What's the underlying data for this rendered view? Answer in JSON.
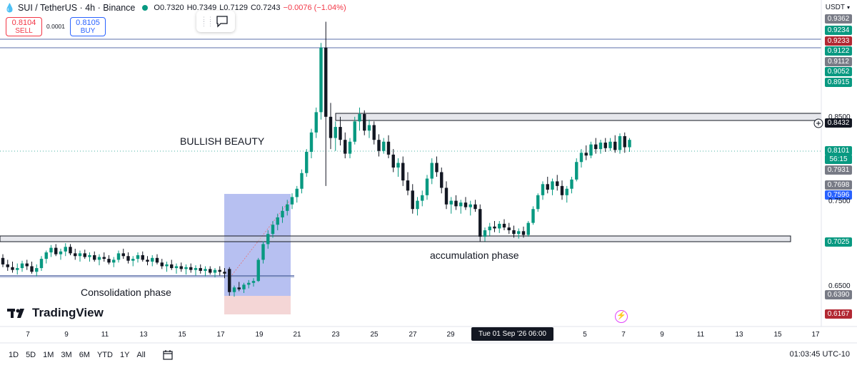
{
  "header": {
    "symbol": "SUI / TetherUS · 4h · Binance",
    "open": "O0.7320",
    "high": "H0.7349",
    "low": "L0.7129",
    "close": "C0.7243",
    "change": "−0.0076 (−1.04%)"
  },
  "trade": {
    "sell_price": "0.8104",
    "sell_label": "SELL",
    "spread": "0.0001",
    "buy_price": "0.8105",
    "buy_label": "BUY"
  },
  "currency": "USDT",
  "price_labels": [
    {
      "text": "0.9362",
      "color": "#787b86"
    },
    {
      "text": "0.9234",
      "color": "#089981"
    },
    {
      "text": "0.9233",
      "color": "#b22833"
    },
    {
      "text": "0.9122",
      "color": "#089981"
    },
    {
      "text": "0.9112",
      "color": "#787b86"
    },
    {
      "text": "0.9052",
      "color": "#089981"
    },
    {
      "text": "0.8915",
      "color": "#089981"
    },
    {
      "text": "0.8432",
      "color": "#131722"
    },
    {
      "text": "0.8101",
      "color": "#089981"
    },
    {
      "text": "56:15",
      "color": "#089981"
    },
    {
      "text": "0.7931",
      "color": "#787b86"
    },
    {
      "text": "0.7698",
      "color": "#787b86"
    },
    {
      "text": "0.7596",
      "color": "#2962ff"
    },
    {
      "text": "0.7025",
      "color": "#089981"
    },
    {
      "text": "0.6390",
      "color": "#787b86"
    },
    {
      "text": "0.6167",
      "color": "#b22833"
    }
  ],
  "axis_prices": [
    "0.8500",
    "0.7500",
    "0.6500"
  ],
  "x_ticks": [
    "7",
    "9",
    "11",
    "13",
    "15",
    "17",
    "19",
    "21",
    "23",
    "25",
    "27",
    "29",
    "5",
    "7",
    "9",
    "11",
    "13",
    "15",
    "17"
  ],
  "crosshair_date": "Tue 01 Sep '26   06:00",
  "annotations": {
    "bullish": "BULLISH BEAUTY",
    "accumulation": "accumulation phase",
    "consolidation": "Consolidation phase"
  },
  "logo_text": "TradingView",
  "timeframes": [
    "1D",
    "5D",
    "1M",
    "3M",
    "6M",
    "YTD",
    "1Y",
    "All"
  ],
  "clock": "01:03:45 UTC-10",
  "colors": {
    "up": "#089981",
    "down": "#131722"
  },
  "chart_data": {
    "type": "candlestick",
    "interval": "4h",
    "ylim": [
      0.61,
      0.95
    ],
    "candles": [
      [
        0.682,
        0.686,
        0.672,
        0.675
      ],
      [
        0.675,
        0.68,
        0.668,
        0.672
      ],
      [
        0.672,
        0.678,
        0.666,
        0.669
      ],
      [
        0.669,
        0.676,
        0.664,
        0.671
      ],
      [
        0.671,
        0.679,
        0.667,
        0.676
      ],
      [
        0.676,
        0.68,
        0.669,
        0.673
      ],
      [
        0.673,
        0.678,
        0.665,
        0.667
      ],
      [
        0.667,
        0.675,
        0.662,
        0.671
      ],
      [
        0.671,
        0.684,
        0.668,
        0.681
      ],
      [
        0.681,
        0.69,
        0.676,
        0.688
      ],
      [
        0.688,
        0.696,
        0.683,
        0.693
      ],
      [
        0.693,
        0.697,
        0.684,
        0.686
      ],
      [
        0.686,
        0.692,
        0.68,
        0.689
      ],
      [
        0.689,
        0.698,
        0.684,
        0.694
      ],
      [
        0.694,
        0.697,
        0.685,
        0.687
      ],
      [
        0.687,
        0.692,
        0.68,
        0.684
      ],
      [
        0.684,
        0.69,
        0.678,
        0.687
      ],
      [
        0.687,
        0.691,
        0.681,
        0.683
      ],
      [
        0.683,
        0.688,
        0.678,
        0.685
      ],
      [
        0.685,
        0.689,
        0.678,
        0.68
      ],
      [
        0.68,
        0.686,
        0.674,
        0.683
      ],
      [
        0.683,
        0.688,
        0.678,
        0.681
      ],
      [
        0.681,
        0.685,
        0.675,
        0.677
      ],
      [
        0.677,
        0.683,
        0.672,
        0.68
      ],
      [
        0.68,
        0.69,
        0.677,
        0.687
      ],
      [
        0.687,
        0.692,
        0.681,
        0.684
      ],
      [
        0.684,
        0.688,
        0.676,
        0.679
      ],
      [
        0.679,
        0.684,
        0.673,
        0.681
      ],
      [
        0.681,
        0.688,
        0.677,
        0.685
      ],
      [
        0.685,
        0.689,
        0.678,
        0.68
      ],
      [
        0.68,
        0.684,
        0.674,
        0.678
      ],
      [
        0.678,
        0.685,
        0.673,
        0.682
      ],
      [
        0.682,
        0.686,
        0.675,
        0.677
      ],
      [
        0.677,
        0.681,
        0.67,
        0.673
      ],
      [
        0.673,
        0.678,
        0.667,
        0.675
      ],
      [
        0.675,
        0.68,
        0.669,
        0.671
      ],
      [
        0.671,
        0.676,
        0.665,
        0.673
      ],
      [
        0.673,
        0.677,
        0.667,
        0.67
      ],
      [
        0.67,
        0.675,
        0.664,
        0.672
      ],
      [
        0.672,
        0.676,
        0.666,
        0.669
      ],
      [
        0.669,
        0.674,
        0.663,
        0.671
      ],
      [
        0.671,
        0.675,
        0.665,
        0.668
      ],
      [
        0.668,
        0.673,
        0.662,
        0.67
      ],
      [
        0.67,
        0.673,
        0.664,
        0.666
      ],
      [
        0.666,
        0.671,
        0.661,
        0.669
      ],
      [
        0.669,
        0.673,
        0.663,
        0.667
      ],
      [
        0.667,
        0.671,
        0.66,
        0.665
      ],
      [
        0.67,
        0.672,
        0.641,
        0.645
      ],
      [
        0.645,
        0.652,
        0.64,
        0.65
      ],
      [
        0.65,
        0.656,
        0.646,
        0.648
      ],
      [
        0.648,
        0.655,
        0.644,
        0.653
      ],
      [
        0.653,
        0.658,
        0.649,
        0.655
      ],
      [
        0.655,
        0.66,
        0.651,
        0.657
      ],
      [
        0.657,
        0.682,
        0.656,
        0.68
      ],
      [
        0.68,
        0.7,
        0.676,
        0.697
      ],
      [
        0.697,
        0.712,
        0.692,
        0.708
      ],
      [
        0.708,
        0.722,
        0.704,
        0.718
      ],
      [
        0.718,
        0.73,
        0.712,
        0.726
      ],
      [
        0.726,
        0.738,
        0.72,
        0.733
      ],
      [
        0.733,
        0.745,
        0.728,
        0.74
      ],
      [
        0.74,
        0.752,
        0.735,
        0.748
      ],
      [
        0.748,
        0.76,
        0.742,
        0.757
      ],
      [
        0.757,
        0.778,
        0.752,
        0.774
      ],
      [
        0.774,
        0.8,
        0.77,
        0.797
      ],
      [
        0.797,
        0.822,
        0.79,
        0.818
      ],
      [
        0.818,
        0.845,
        0.812,
        0.84
      ],
      [
        0.84,
        0.915,
        0.832,
        0.91
      ],
      [
        0.91,
        0.938,
        0.76,
        0.835
      ],
      [
        0.835,
        0.85,
        0.8,
        0.812
      ],
      [
        0.812,
        0.83,
        0.798,
        0.824
      ],
      [
        0.824,
        0.835,
        0.804,
        0.81
      ],
      [
        0.81,
        0.818,
        0.79,
        0.795
      ],
      [
        0.795,
        0.812,
        0.79,
        0.808
      ],
      [
        0.808,
        0.835,
        0.805,
        0.83
      ],
      [
        0.83,
        0.845,
        0.82,
        0.838
      ],
      [
        0.838,
        0.842,
        0.815,
        0.82
      ],
      [
        0.82,
        0.832,
        0.812,
        0.826
      ],
      [
        0.826,
        0.83,
        0.805,
        0.81
      ],
      [
        0.81,
        0.816,
        0.792,
        0.798
      ],
      [
        0.798,
        0.812,
        0.795,
        0.808
      ],
      [
        0.808,
        0.815,
        0.79,
        0.794
      ],
      [
        0.794,
        0.8,
        0.775,
        0.78
      ],
      [
        0.78,
        0.79,
        0.77,
        0.785
      ],
      [
        0.785,
        0.792,
        0.76,
        0.766
      ],
      [
        0.766,
        0.775,
        0.75,
        0.755
      ],
      [
        0.755,
        0.762,
        0.73,
        0.735
      ],
      [
        0.735,
        0.748,
        0.728,
        0.744
      ],
      [
        0.744,
        0.755,
        0.738,
        0.75
      ],
      [
        0.75,
        0.772,
        0.745,
        0.768
      ],
      [
        0.768,
        0.79,
        0.762,
        0.785
      ],
      [
        0.785,
        0.792,
        0.77,
        0.775
      ],
      [
        0.775,
        0.78,
        0.752,
        0.758
      ],
      [
        0.758,
        0.765,
        0.735,
        0.74
      ],
      [
        0.74,
        0.748,
        0.73,
        0.744
      ],
      [
        0.744,
        0.75,
        0.734,
        0.738
      ],
      [
        0.738,
        0.745,
        0.73,
        0.742
      ],
      [
        0.742,
        0.748,
        0.734,
        0.737
      ],
      [
        0.737,
        0.744,
        0.728,
        0.74
      ],
      [
        0.74,
        0.745,
        0.732,
        0.735
      ],
      [
        0.735,
        0.74,
        0.7,
        0.705
      ],
      [
        0.705,
        0.715,
        0.7,
        0.712
      ],
      [
        0.712,
        0.72,
        0.706,
        0.716
      ],
      [
        0.716,
        0.722,
        0.71,
        0.714
      ],
      [
        0.714,
        0.722,
        0.709,
        0.719
      ],
      [
        0.719,
        0.724,
        0.712,
        0.715
      ],
      [
        0.715,
        0.72,
        0.708,
        0.712
      ],
      [
        0.712,
        0.717,
        0.704,
        0.708
      ],
      [
        0.708,
        0.714,
        0.703,
        0.711
      ],
      [
        0.711,
        0.716,
        0.704,
        0.707
      ],
      [
        0.707,
        0.722,
        0.705,
        0.72
      ],
      [
        0.72,
        0.738,
        0.718,
        0.735
      ],
      [
        0.735,
        0.752,
        0.732,
        0.75
      ],
      [
        0.75,
        0.765,
        0.745,
        0.762
      ],
      [
        0.762,
        0.77,
        0.752,
        0.756
      ],
      [
        0.756,
        0.768,
        0.75,
        0.765
      ],
      [
        0.765,
        0.772,
        0.755,
        0.76
      ],
      [
        0.76,
        0.766,
        0.745,
        0.75
      ],
      [
        0.75,
        0.76,
        0.742,
        0.757
      ],
      [
        0.757,
        0.77,
        0.752,
        0.767
      ],
      [
        0.767,
        0.79,
        0.765,
        0.786
      ],
      [
        0.786,
        0.8,
        0.78,
        0.796
      ],
      [
        0.796,
        0.804,
        0.788,
        0.793
      ],
      [
        0.793,
        0.808,
        0.79,
        0.805
      ],
      [
        0.805,
        0.812,
        0.795,
        0.8
      ],
      [
        0.8,
        0.81,
        0.795,
        0.807
      ],
      [
        0.807,
        0.812,
        0.797,
        0.801
      ],
      [
        0.801,
        0.812,
        0.798,
        0.808
      ],
      [
        0.808,
        0.815,
        0.796,
        0.799
      ],
      [
        0.799,
        0.817,
        0.795,
        0.814
      ],
      [
        0.814,
        0.818,
        0.796,
        0.802
      ],
      [
        0.802,
        0.812,
        0.797,
        0.81
      ]
    ]
  }
}
